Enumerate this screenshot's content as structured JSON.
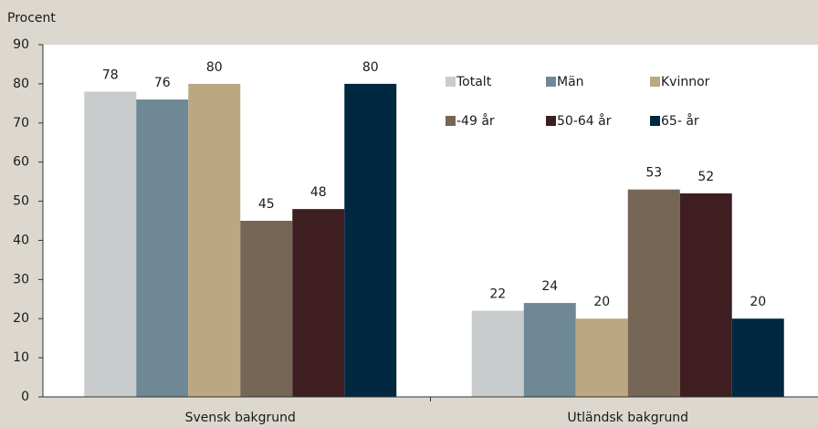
{
  "chart_data": {
    "type": "bar",
    "ylabel": "Procent",
    "categories": [
      "Svensk bakgrund",
      "Utländsk bakgrund"
    ],
    "series": [
      {
        "name": "Totalt",
        "color": "#c8cccc",
        "values": [
          78,
          22
        ]
      },
      {
        "name": "Män",
        "color": "#6e8896",
        "values": [
          76,
          24
        ]
      },
      {
        "name": "Kvinnor",
        "color": "#bba880",
        "values": [
          80,
          20
        ]
      },
      {
        "name": "-49 år",
        "color": "#766656",
        "values": [
          45,
          53
        ]
      },
      {
        "name": "50-64 år",
        "color": "#3e1e20",
        "values": [
          48,
          52
        ]
      },
      {
        "name": "65- år",
        "color": "#002840",
        "values": [
          80,
          20
        ]
      }
    ],
    "ylim": [
      0,
      90
    ],
    "yticks": [
      0,
      10,
      20,
      30,
      40,
      50,
      60,
      70,
      80,
      90
    ],
    "legend": "upper right"
  }
}
